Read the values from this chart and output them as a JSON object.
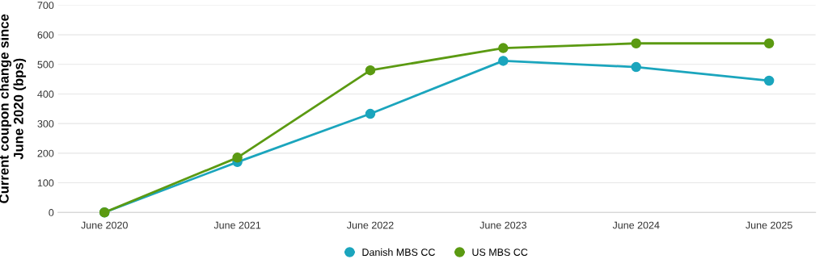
{
  "chart_data": {
    "type": "line",
    "ylabel": "Current coupon change since\nJune 2020 (bps)",
    "categories": [
      "June 2020",
      "June 2021",
      "June 2022",
      "June 2023",
      "June 2024",
      "June 2025"
    ],
    "series": [
      {
        "name": "Danish MBS CC",
        "color": "#1ba5bd",
        "values": [
          0,
          170,
          333,
          512,
          491,
          445
        ]
      },
      {
        "name": "US MBS CC",
        "color": "#5b9a12",
        "values": [
          0,
          185,
          480,
          555,
          571,
          571
        ]
      }
    ],
    "ylim": [
      0,
      700
    ],
    "yticks": [
      0,
      100,
      200,
      300,
      400,
      500,
      600,
      700
    ],
    "grid": "y",
    "legend": "bottom",
    "marker": "circle",
    "line_style": "solid"
  }
}
